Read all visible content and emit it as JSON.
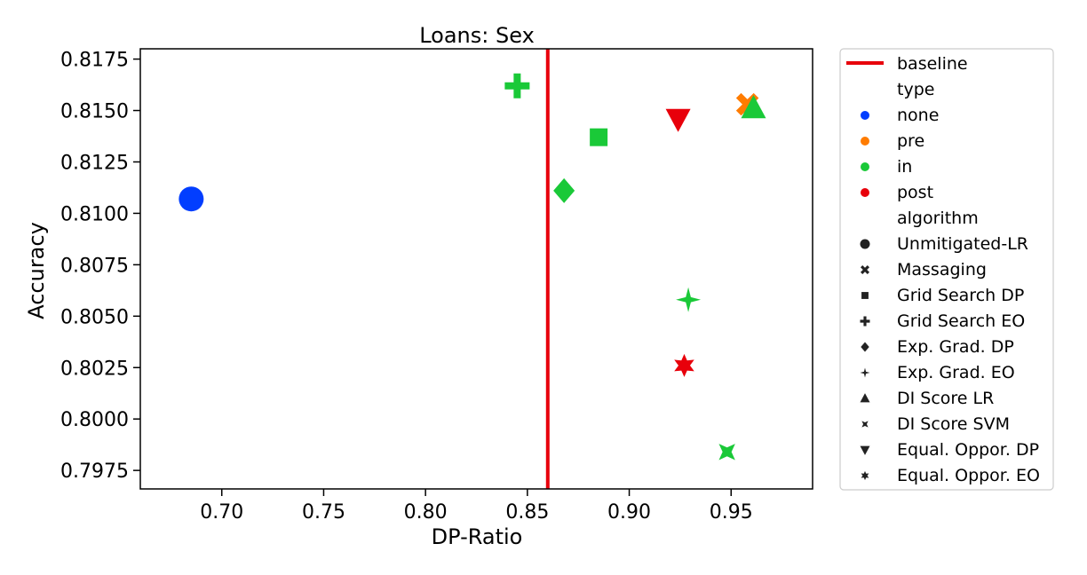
{
  "chart_data": {
    "type": "scatter",
    "title": "Loans: Sex",
    "xlabel": "DP-Ratio",
    "ylabel": "Accuracy",
    "xlim": [
      0.66,
      0.99
    ],
    "ylim": [
      0.7966,
      0.818
    ],
    "xticks": [
      "0.70",
      "0.75",
      "0.80",
      "0.85",
      "0.90",
      "0.95"
    ],
    "xtick_values": [
      0.7,
      0.75,
      0.8,
      0.85,
      0.9,
      0.95
    ],
    "yticks": [
      "0.7975",
      "0.8000",
      "0.8025",
      "0.8050",
      "0.8075",
      "0.8100",
      "0.8125",
      "0.8150",
      "0.8175"
    ],
    "ytick_values": [
      0.7975,
      0.8,
      0.8025,
      0.805,
      0.8075,
      0.81,
      0.8125,
      0.815,
      0.8175
    ],
    "grid": false,
    "legend_placement": "outside right",
    "baseline": {
      "label": "baseline",
      "x": 0.86,
      "color": "#e8000b"
    },
    "type_colors": {
      "none": "#023eff",
      "pre": "#ff7c00",
      "in": "#1ac938",
      "post": "#e8000b"
    },
    "legend": {
      "type_title": "type",
      "types": [
        "none",
        "pre",
        "in",
        "post"
      ],
      "algorithm_title": "algorithm",
      "algorithms": [
        {
          "name": "Unmitigated-LR",
          "marker": "circle"
        },
        {
          "name": "Massaging",
          "marker": "x"
        },
        {
          "name": "Grid Search DP",
          "marker": "square"
        },
        {
          "name": "Grid Search EO",
          "marker": "plus"
        },
        {
          "name": "Exp. Grad. DP",
          "marker": "diamond"
        },
        {
          "name": "Exp. Grad. EO",
          "marker": "star4"
        },
        {
          "name": "DI Score LR",
          "marker": "triangle-up"
        },
        {
          "name": "DI Score SVM",
          "marker": "star4x"
        },
        {
          "name": "Equal. Oppor. DP",
          "marker": "triangle-down"
        },
        {
          "name": "Equal. Oppor. EO",
          "marker": "star6"
        }
      ]
    },
    "points": [
      {
        "algorithm": "Unmitigated-LR",
        "type": "none",
        "x": 0.685,
        "y": 0.8107
      },
      {
        "algorithm": "Massaging",
        "type": "pre",
        "x": 0.958,
        "y": 0.8153
      },
      {
        "algorithm": "Grid Search DP",
        "type": "in",
        "x": 0.885,
        "y": 0.8137
      },
      {
        "algorithm": "Grid Search EO",
        "type": "in",
        "x": 0.845,
        "y": 0.8162
      },
      {
        "algorithm": "Exp. Grad. DP",
        "type": "in",
        "x": 0.868,
        "y": 0.8111
      },
      {
        "algorithm": "Exp. Grad. EO",
        "type": "in",
        "x": 0.929,
        "y": 0.8058
      },
      {
        "algorithm": "DI Score LR",
        "type": "in",
        "x": 0.961,
        "y": 0.8151
      },
      {
        "algorithm": "DI Score SVM",
        "type": "in",
        "x": 0.948,
        "y": 0.7984
      },
      {
        "algorithm": "Equal. Oppor. DP",
        "type": "post",
        "x": 0.924,
        "y": 0.8146
      },
      {
        "algorithm": "Equal. Oppor. EO",
        "type": "post",
        "x": 0.927,
        "y": 0.8026
      }
    ]
  }
}
